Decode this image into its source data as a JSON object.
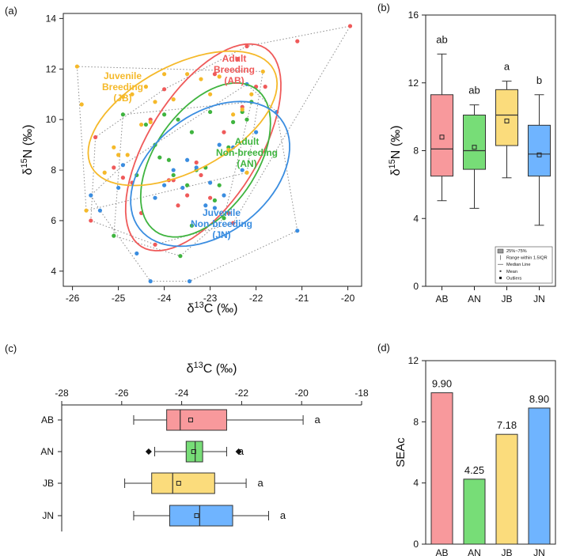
{
  "colors": {
    "AB": "#ef5a5a",
    "AN": "#3fb43f",
    "JB": "#f5b92a",
    "JN": "#3a8de0",
    "AB_fill": "#f8999c",
    "AN_fill": "#77dd77",
    "JB_fill": "#fbdc7c",
    "JN_fill": "#6fb4ff"
  },
  "chart_data": [
    {
      "type": "scatter",
      "panel_label": "(a)",
      "xlabel_base": "δ",
      "xlabel_sup": "13",
      "xlabel_rest": "C (‰)",
      "ylabel_base": "δ",
      "ylabel_sup": "15",
      "ylabel_rest": "N (‰)",
      "xlim": [
        -26.2,
        -19.7
      ],
      "ylim": [
        3.4,
        14.2
      ],
      "xticks": [
        -26,
        -25,
        -24,
        -23,
        -22,
        -21,
        -20
      ],
      "yticks": [
        4,
        6,
        8,
        10,
        12,
        14
      ],
      "groups": [
        {
          "name": "AB",
          "label": [
            "Adult",
            "Breeding",
            "(AB)"
          ],
          "color": "#ef5a5a",
          "points": [
            [
              -25.6,
              6.0
            ],
            [
              -25.5,
              9.3
            ],
            [
              -25.1,
              8.1
            ],
            [
              -24.9,
              7.7
            ],
            [
              -24.7,
              7.5
            ],
            [
              -24.5,
              6.3
            ],
            [
              -24.3,
              10.0
            ],
            [
              -24.2,
              5.05
            ],
            [
              -24.0,
              11.2
            ],
            [
              -23.9,
              7.6
            ],
            [
              -23.8,
              7.6
            ],
            [
              -23.7,
              6.6
            ],
            [
              -23.5,
              7.0
            ],
            [
              -23.3,
              8.3
            ],
            [
              -23.2,
              7.8
            ],
            [
              -23.0,
              6.9
            ],
            [
              -22.9,
              11.8
            ],
            [
              -22.7,
              9.5
            ],
            [
              -22.6,
              6.3
            ],
            [
              -22.5,
              5.9
            ],
            [
              -22.4,
              12.4
            ],
            [
              -22.3,
              10.5
            ],
            [
              -22.2,
              12.9
            ],
            [
              -22.0,
              11.3
            ],
            [
              -21.8,
              11.3
            ],
            [
              -21.1,
              13.1
            ],
            [
              -19.95,
              13.7
            ]
          ],
          "ellipse": {
            "cx": -23.15,
            "cy": 8.9,
            "rx": 2.55,
            "ry": 1.2,
            "angle_deg": 58
          }
        },
        {
          "name": "AN",
          "label": [
            "Adult",
            "Non-breeding",
            "(AN)"
          ],
          "color": "#3fb43f",
          "points": [
            [
              -25.1,
              5.4
            ],
            [
              -24.9,
              10.2
            ],
            [
              -24.6,
              7.8
            ],
            [
              -24.4,
              9.8
            ],
            [
              -24.2,
              9.0
            ],
            [
              -24.1,
              8.5
            ],
            [
              -24.0,
              10.2
            ],
            [
              -23.9,
              8.4
            ],
            [
              -23.8,
              7.8
            ],
            [
              -23.7,
              10.0
            ],
            [
              -23.65,
              4.6
            ],
            [
              -23.5,
              7.4
            ],
            [
              -23.4,
              9.5
            ],
            [
              -23.3,
              8.0
            ],
            [
              -23.1,
              8.1
            ],
            [
              -23.0,
              10.3
            ],
            [
              -22.9,
              6.8
            ],
            [
              -22.8,
              7.4
            ],
            [
              -22.7,
              6.1
            ],
            [
              -22.6,
              8.9
            ],
            [
              -22.5,
              9.9
            ],
            [
              -22.3,
              10.3
            ],
            [
              -22.2,
              10.0
            ],
            [
              -22.1,
              10.7
            ],
            [
              -23.4,
              5.8
            ]
          ],
          "ellipse": {
            "cx": -23.1,
            "cy": 8.4,
            "rx": 1.9,
            "ry": 1.1,
            "angle_deg": 55
          }
        },
        {
          "name": "JB",
          "label": [
            "Juvenile",
            "Breeding",
            "(JB)"
          ],
          "color": "#f5b92a",
          "points": [
            [
              -25.9,
              12.1
            ],
            [
              -25.8,
              10.6
            ],
            [
              -25.7,
              6.4
            ],
            [
              -25.3,
              7.9
            ],
            [
              -25.1,
              8.9
            ],
            [
              -25.0,
              8.6
            ],
            [
              -24.9,
              10.9
            ],
            [
              -24.8,
              8.6
            ],
            [
              -24.7,
              11.0
            ],
            [
              -24.5,
              9.8
            ],
            [
              -24.4,
              11.3
            ],
            [
              -24.2,
              10.7
            ],
            [
              -24.0,
              11.8
            ],
            [
              -23.8,
              10.8
            ],
            [
              -23.5,
              11.8
            ],
            [
              -23.2,
              11.6
            ],
            [
              -23.0,
              11.0
            ],
            [
              -22.8,
              11.7
            ],
            [
              -22.6,
              8.8
            ],
            [
              -22.5,
              10.2
            ],
            [
              -22.3,
              10.4
            ],
            [
              -22.1,
              11.0
            ],
            [
              -21.85,
              11.9
            ],
            [
              -22.2,
              7.9
            ],
            [
              -24.3,
              9.9
            ]
          ],
          "ellipse": {
            "cx": -23.6,
            "cy": 10.05,
            "rx": 2.25,
            "ry": 1.15,
            "angle_deg": 28
          }
        },
        {
          "name": "JN",
          "label": [
            "Juvenile",
            "Non-breeding",
            "(JN)"
          ],
          "color": "#3a8de0",
          "points": [
            [
              -25.6,
              7.0
            ],
            [
              -25.4,
              6.4
            ],
            [
              -25.0,
              7.3
            ],
            [
              -24.9,
              8.2
            ],
            [
              -24.6,
              4.7
            ],
            [
              -24.3,
              3.6
            ],
            [
              -24.2,
              6.9
            ],
            [
              -24.0,
              7.4
            ],
            [
              -23.8,
              8.0
            ],
            [
              -23.6,
              7.3
            ],
            [
              -23.45,
              3.6
            ],
            [
              -23.3,
              8.1
            ],
            [
              -23.1,
              6.6
            ],
            [
              -23.0,
              7.5
            ],
            [
              -22.8,
              9.0
            ],
            [
              -22.7,
              7.0
            ],
            [
              -22.5,
              8.9
            ],
            [
              -22.3,
              8.0
            ],
            [
              -22.2,
              11.4
            ],
            [
              -22.0,
              9.5
            ],
            [
              -21.55,
              10.3
            ],
            [
              -21.1,
              5.6
            ],
            [
              -22.9,
              6.5
            ],
            [
              -23.5,
              8.4
            ]
          ],
          "ellipse": {
            "cx": -23.0,
            "cy": 7.85,
            "rx": 1.95,
            "ry": 1.3,
            "angle_deg": 38
          }
        }
      ],
      "hull_color": "#8c8c8c"
    },
    {
      "type": "box",
      "panel_label": "(b)",
      "ylabel_base": "δ",
      "ylabel_sup": "15",
      "ylabel_rest": "N (‰)",
      "categories": [
        "AB",
        "AN",
        "JB",
        "JN"
      ],
      "ylim": [
        0,
        16
      ],
      "yticks": [
        0,
        4,
        8,
        12,
        16
      ],
      "boxes": [
        {
          "name": "AB",
          "q1": 6.5,
          "median": 8.1,
          "q3": 11.3,
          "whisker_low": 5.05,
          "whisker_high": 13.7,
          "mean": 8.8,
          "letter": "ab"
        },
        {
          "name": "AN",
          "q1": 6.9,
          "median": 8.0,
          "q3": 10.1,
          "whisker_low": 4.6,
          "whisker_high": 10.7,
          "mean": 8.2,
          "letter": "ab"
        },
        {
          "name": "JB",
          "q1": 8.3,
          "median": 10.1,
          "q3": 11.6,
          "whisker_low": 6.4,
          "whisker_high": 12.1,
          "mean": 9.75,
          "letter": "a"
        },
        {
          "name": "JN",
          "q1": 6.5,
          "median": 7.8,
          "q3": 9.5,
          "whisker_low": 3.6,
          "whisker_high": 11.3,
          "mean": 7.75,
          "letter": "b"
        }
      ],
      "legend": [
        "25%~75%",
        "Range within 1.5IQR",
        "Median Line",
        "Mean",
        "Outliers"
      ]
    },
    {
      "type": "box_horizontal",
      "panel_label": "(c)",
      "xlabel_base": "δ",
      "xlabel_sup": "13",
      "xlabel_rest": "C (‰)",
      "categories": [
        "AB",
        "AN",
        "JB",
        "JN"
      ],
      "xlim": [
        -28,
        -18
      ],
      "xticks": [
        -28,
        -26,
        -24,
        -22,
        -20,
        -18
      ],
      "boxes": [
        {
          "name": "AB",
          "q1": -24.5,
          "median": -24.05,
          "q3": -22.5,
          "whisker_low": -25.6,
          "whisker_high": -19.95,
          "mean": -23.7,
          "letter": "a",
          "outliers": []
        },
        {
          "name": "AN",
          "q1": -23.85,
          "median": -23.55,
          "q3": -23.3,
          "whisker_low": -24.9,
          "whisker_high": -22.5,
          "mean": -23.6,
          "letter": "a",
          "outliers": [
            -25.1,
            -22.1
          ]
        },
        {
          "name": "JB",
          "q1": -25.0,
          "median": -24.3,
          "q3": -22.9,
          "whisker_low": -25.9,
          "whisker_high": -21.85,
          "mean": -24.1,
          "letter": "a",
          "outliers": []
        },
        {
          "name": "JN",
          "q1": -24.4,
          "median": -23.4,
          "q3": -22.3,
          "whisker_low": -25.6,
          "whisker_high": -21.1,
          "mean": -23.5,
          "letter": "a",
          "outliers": []
        }
      ]
    },
    {
      "type": "bar",
      "panel_label": "(d)",
      "ylabel": "SEAc",
      "categories": [
        "AB",
        "AN",
        "JB",
        "JN"
      ],
      "values": [
        9.9,
        4.25,
        7.18,
        8.9
      ],
      "value_labels": [
        "9.90",
        "4.25",
        "7.18",
        "8.90"
      ],
      "ylim": [
        0,
        12
      ],
      "yticks": [
        0,
        4,
        8,
        12
      ]
    }
  ]
}
